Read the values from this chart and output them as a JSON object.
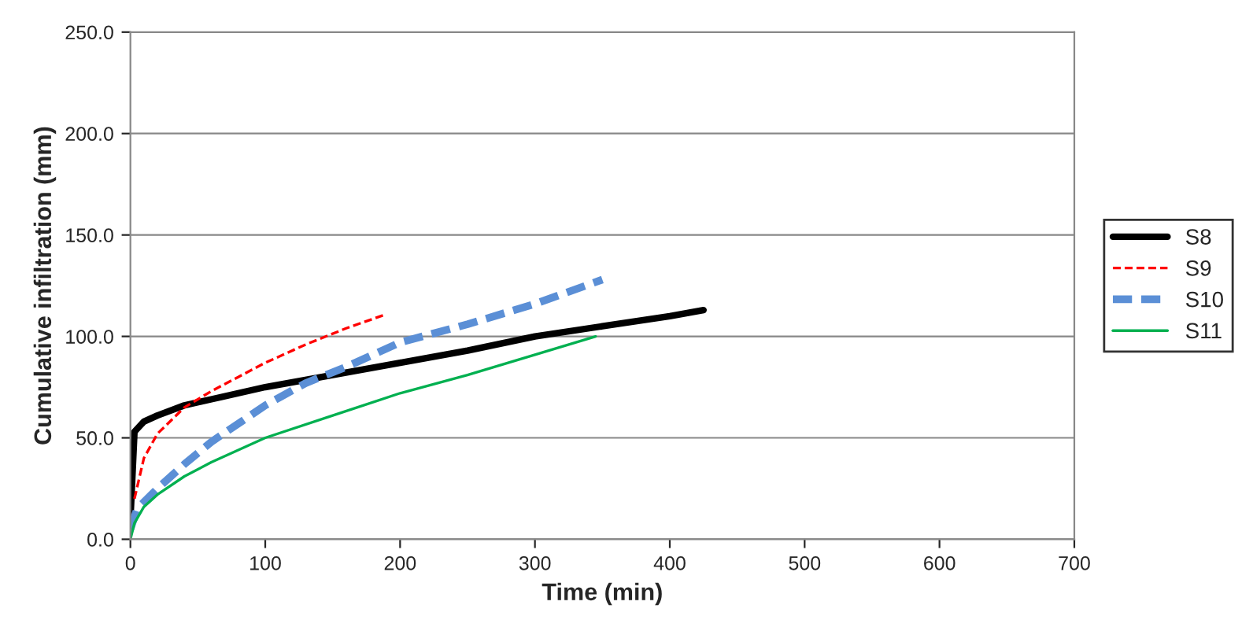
{
  "chart_data": {
    "type": "line",
    "xlabel": "Time (min)",
    "ylabel": "Cumulative infiltration (mm)",
    "xlim": [
      0,
      700
    ],
    "xticks": [
      0,
      100,
      200,
      300,
      400,
      500,
      600,
      700
    ],
    "ylim": [
      0,
      250
    ],
    "yticks": [
      {
        "value": 0,
        "label": "0.0"
      },
      {
        "value": 50,
        "label": "50.0"
      },
      {
        "value": 100,
        "label": "100.0"
      },
      {
        "value": 150,
        "label": "150.0"
      },
      {
        "value": 200,
        "label": "200.0"
      },
      {
        "value": 250,
        "label": "250.0"
      }
    ],
    "grid": "y",
    "legend": "right",
    "marker": "none",
    "series": [
      {
        "name": "S8",
        "color": "#000000",
        "line_style": "solid",
        "x": [
          0,
          3,
          10,
          20,
          40,
          60,
          100,
          150,
          200,
          250,
          300,
          350,
          400,
          425
        ],
        "values": [
          10,
          53,
          58,
          61,
          66,
          69,
          75,
          81,
          87,
          93,
          100,
          105,
          110,
          113
        ]
      },
      {
        "name": "S9",
        "color": "#ff0000",
        "line_style": "dashed",
        "x": [
          3,
          10,
          20,
          40,
          60,
          80,
          100,
          130,
          160,
          190
        ],
        "values": [
          20,
          40,
          52,
          65,
          73,
          80,
          87,
          96,
          104,
          111
        ]
      },
      {
        "name": "S10",
        "color": "#5b8fd6",
        "line_style": "dashed",
        "x": [
          0,
          5,
          20,
          40,
          60,
          80,
          100,
          130,
          160,
          200,
          250,
          300,
          350
        ],
        "values": [
          5,
          15,
          25,
          37,
          48,
          57,
          66,
          77,
          85,
          97,
          106,
          116,
          128
        ]
      },
      {
        "name": "S11",
        "color": "#00b050",
        "line_style": "solid",
        "x": [
          0,
          3,
          10,
          20,
          40,
          60,
          100,
          150,
          200,
          250,
          300,
          345
        ],
        "values": [
          0,
          8,
          16,
          22,
          31,
          38,
          50,
          61,
          72,
          81,
          91,
          100
        ]
      }
    ]
  }
}
